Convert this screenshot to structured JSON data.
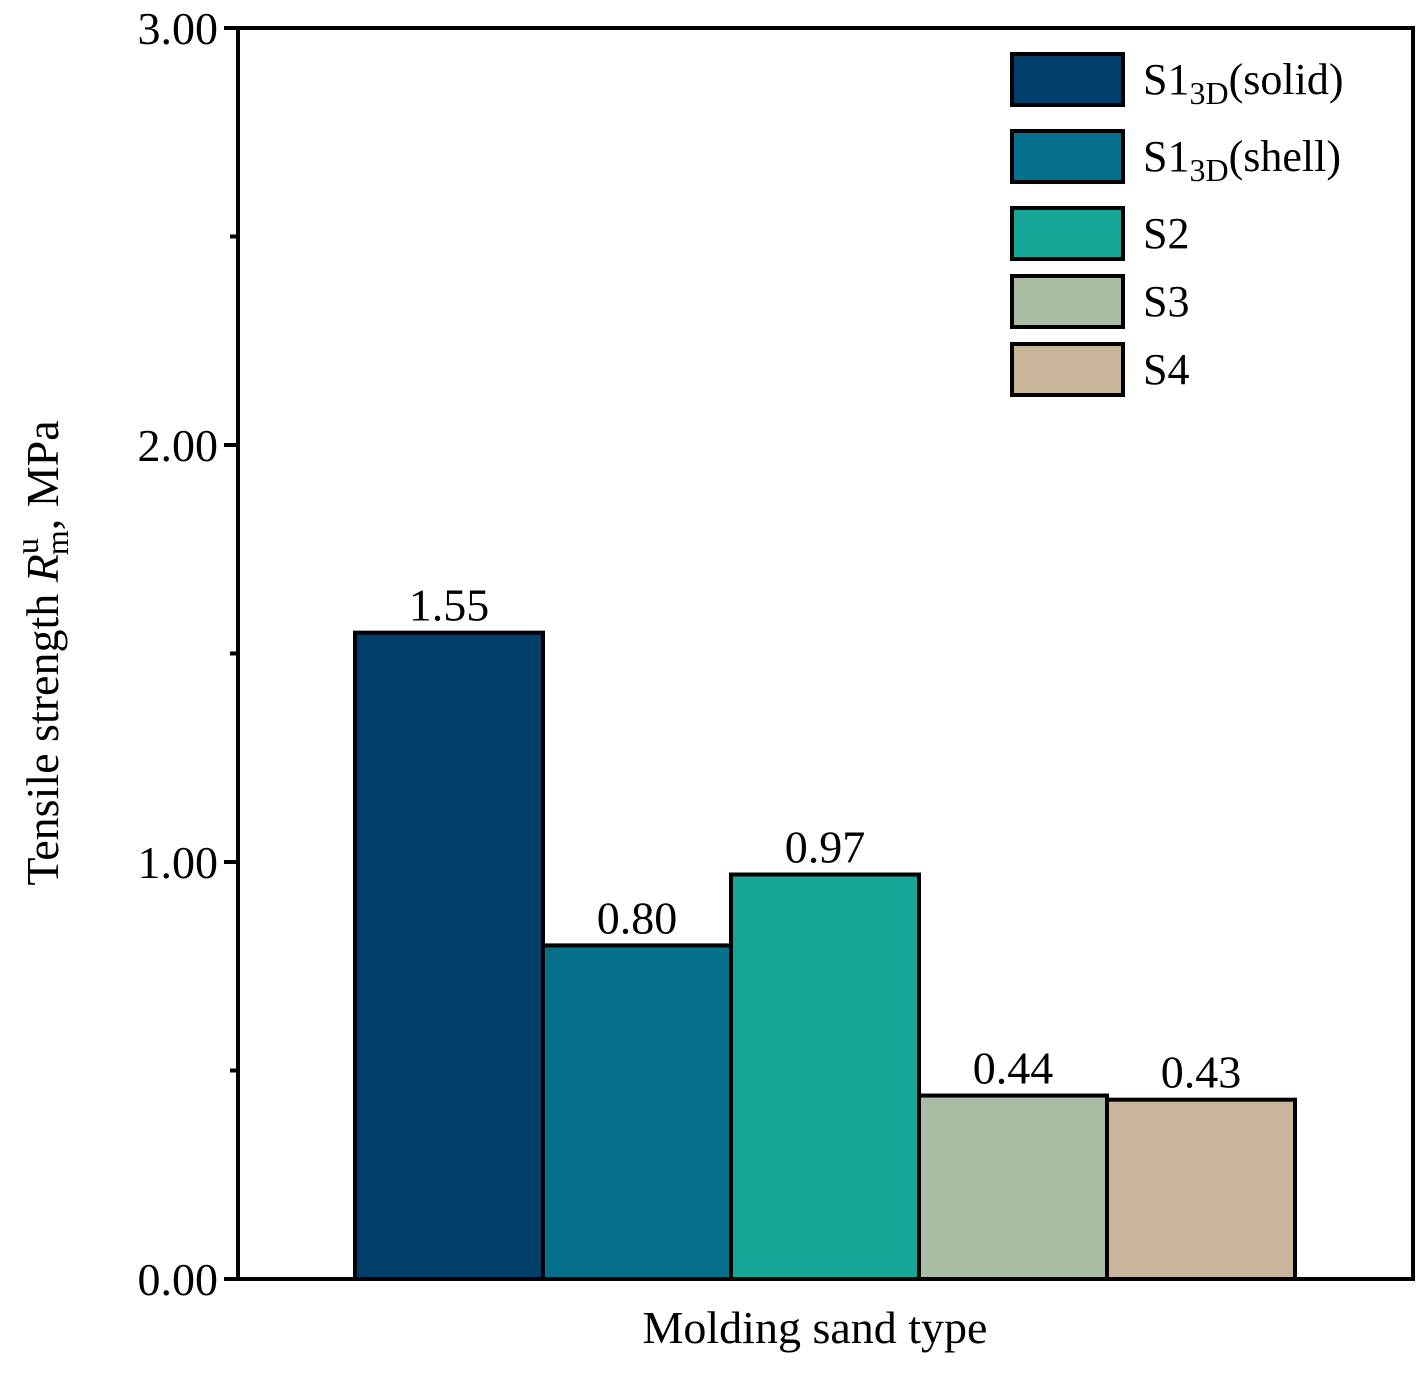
{
  "chart_data": {
    "type": "bar",
    "title": "",
    "xlabel": "Molding sand type",
    "ylabel": {
      "prefix": "Tensile strength ",
      "symbol": "R",
      "superscript": "u",
      "subscript": "m",
      "suffix": ", MPa"
    },
    "ylim": [
      0,
      3
    ],
    "yticks": [
      {
        "value": 0,
        "label": "0.00"
      },
      {
        "value": 1,
        "label": "1.00"
      },
      {
        "value": 2,
        "label": "2.00"
      },
      {
        "value": 3,
        "label": "3.00"
      }
    ],
    "minor_ticks": [
      0.5,
      1.5,
      2.5
    ],
    "grid": false,
    "legend_position": "top-right",
    "series": [
      {
        "name": "S1",
        "sub": "3D",
        "suffix": "(solid)",
        "value": 1.55,
        "data_label": "1.55",
        "color": "#003f6a"
      },
      {
        "name": "S1",
        "sub": "3D",
        "suffix": "(shell)",
        "value": 0.8,
        "data_label": "0.80",
        "color": "#04708b"
      },
      {
        "name": "S2",
        "sub": "",
        "suffix": "",
        "value": 0.97,
        "data_label": "0.97",
        "color": "#15a697"
      },
      {
        "name": "S3",
        "sub": "",
        "suffix": "",
        "value": 0.44,
        "data_label": "0.44",
        "color": "#a8bda3"
      },
      {
        "name": "S4",
        "sub": "",
        "suffix": "",
        "value": 0.43,
        "data_label": "0.43",
        "color": "#c8b59a"
      }
    ]
  }
}
